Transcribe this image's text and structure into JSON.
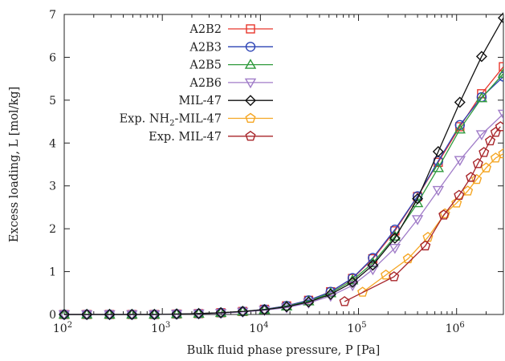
{
  "chart_data": {
    "type": "line",
    "title": "",
    "xlabel": "Bulk fluid phase pressure, P [Pa]",
    "ylabel": "Excess loading, L [mol/kg]",
    "xscale": "log",
    "xlim": [
      100,
      3000000
    ],
    "ylim": [
      0,
      7
    ],
    "xticks": [
      {
        "value": 100,
        "base": "10",
        "exp": "2"
      },
      {
        "value": 1000,
        "base": "10",
        "exp": "3"
      },
      {
        "value": 10000,
        "base": "10",
        "exp": "4"
      },
      {
        "value": 100000,
        "base": "10",
        "exp": "5"
      },
      {
        "value": 1000000,
        "base": "10",
        "exp": "6"
      }
    ],
    "yticks": [
      "0",
      "1",
      "2",
      "3",
      "4",
      "5",
      "6",
      "7"
    ],
    "grid": false,
    "legend_position": "top-left",
    "series": [
      {
        "name": "A2B2",
        "color": "#e8362c",
        "marker": "square",
        "x": [
          100,
          170,
          290,
          490,
          830,
          1400,
          2350,
          3950,
          6600,
          11000,
          18500,
          31000,
          52000,
          87000,
          140000,
          235000,
          400000,
          650000,
          1080000,
          1800000,
          3000000
        ],
        "y": [
          0,
          0,
          0,
          0,
          0,
          0.01,
          0.02,
          0.04,
          0.07,
          0.12,
          0.2,
          0.33,
          0.53,
          0.84,
          1.3,
          1.95,
          2.75,
          3.55,
          4.38,
          5.15,
          5.78
        ]
      },
      {
        "name": "A2B3",
        "color": "#2d44b5",
        "marker": "circle",
        "x": [
          100,
          170,
          290,
          490,
          830,
          1400,
          2350,
          3950,
          6600,
          11000,
          18500,
          31000,
          52000,
          87000,
          140000,
          235000,
          400000,
          650000,
          1080000,
          1800000,
          3000000
        ],
        "y": [
          0,
          0,
          0,
          0,
          0,
          0.01,
          0.02,
          0.04,
          0.07,
          0.12,
          0.2,
          0.33,
          0.53,
          0.85,
          1.32,
          1.98,
          2.76,
          3.58,
          4.42,
          5.07,
          5.55
        ]
      },
      {
        "name": "A2B5",
        "color": "#2f9a3c",
        "marker": "triangle-up",
        "x": [
          100,
          170,
          290,
          490,
          830,
          1400,
          2350,
          3950,
          6600,
          11000,
          18500,
          31000,
          52000,
          87000,
          140000,
          235000,
          400000,
          650000,
          1080000,
          1800000,
          3000000
        ],
        "y": [
          0,
          0,
          0,
          0,
          0,
          0.01,
          0.02,
          0.04,
          0.07,
          0.11,
          0.19,
          0.31,
          0.5,
          0.8,
          1.2,
          1.82,
          2.6,
          3.42,
          4.32,
          5.05,
          5.62
        ]
      },
      {
        "name": "A2B6",
        "color": "#a07cc8",
        "marker": "triangle-down",
        "x": [
          100,
          170,
          290,
          490,
          830,
          1400,
          2350,
          3950,
          6600,
          11000,
          18500,
          31000,
          52000,
          87000,
          140000,
          235000,
          400000,
          650000,
          1080000,
          1800000,
          3000000
        ],
        "y": [
          0,
          0,
          0,
          0,
          0,
          0.01,
          0.02,
          0.03,
          0.06,
          0.1,
          0.16,
          0.27,
          0.43,
          0.68,
          1.05,
          1.55,
          2.22,
          2.9,
          3.6,
          4.2,
          4.68
        ]
      },
      {
        "name": "MIL-47",
        "color": "#111111",
        "marker": "diamond",
        "x": [
          100,
          170,
          290,
          490,
          830,
          1400,
          2350,
          3950,
          6600,
          11000,
          18500,
          31000,
          52000,
          87000,
          140000,
          235000,
          400000,
          650000,
          1080000,
          1800000,
          3000000
        ],
        "y": [
          0,
          0,
          0,
          0,
          0,
          0.01,
          0.02,
          0.04,
          0.07,
          0.11,
          0.18,
          0.29,
          0.47,
          0.75,
          1.15,
          1.78,
          2.7,
          3.8,
          4.95,
          6.02,
          6.92
        ]
      },
      {
        "name": "Exp. NH2-MIL-47",
        "label_prefix": "Exp. NH",
        "label_sub": "2",
        "label_suffix": "-MIL-47",
        "color": "#f5a623",
        "marker": "pentagon",
        "x": [
          110000,
          190000,
          320000,
          510000,
          760000,
          1000000,
          1300000,
          1600000,
          2000000,
          2500000,
          3000000
        ],
        "y": [
          0.52,
          0.92,
          1.3,
          1.8,
          2.35,
          2.6,
          2.88,
          3.15,
          3.42,
          3.65,
          3.75
        ]
      },
      {
        "name": "Exp. MIL-47",
        "color": "#a8252a",
        "marker": "pentagon",
        "x": [
          72000,
          230000,
          480000,
          740000,
          1060000,
          1400000,
          1650000,
          1900000,
          2200000,
          2500000,
          2800000
        ],
        "y": [
          0.3,
          0.88,
          1.6,
          2.32,
          2.78,
          3.2,
          3.52,
          3.78,
          4.05,
          4.25,
          4.38
        ]
      }
    ]
  }
}
